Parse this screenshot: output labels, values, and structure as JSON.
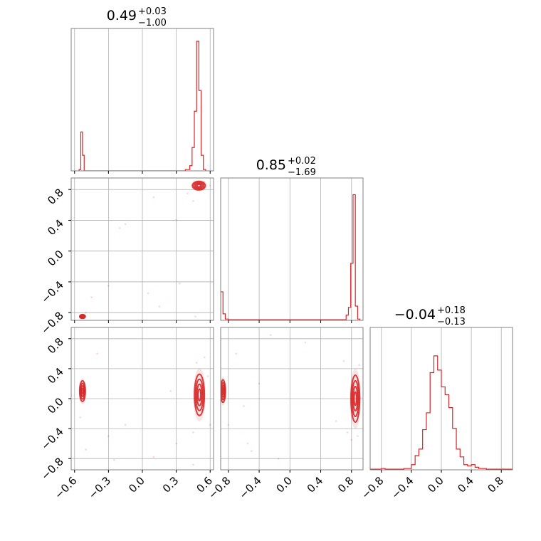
{
  "chart_data": {
    "type": "corner",
    "color": "#d62728",
    "grid": true,
    "titles": [
      {
        "value": "0.49",
        "plus": "+0.03",
        "minus": "−1.00"
      },
      {
        "value": "0.85",
        "plus": "+0.02",
        "minus": "−1.69"
      },
      {
        "value": "−0.04",
        "plus": "+0.18",
        "minus": "−0.13"
      }
    ],
    "axes": [
      {
        "range": [
          -0.63,
          0.63
        ],
        "ticks": [
          -0.6,
          -0.3,
          0.0,
          0.3,
          0.6
        ],
        "tick_labels": [
          "−0.6",
          "−0.3",
          "0.0",
          "0.3",
          "0.6"
        ]
      },
      {
        "range": [
          -0.9,
          0.95
        ],
        "ticks": [
          -0.8,
          -0.4,
          0.0,
          0.4,
          0.8
        ],
        "tick_labels": [
          "−0.8",
          "−0.4",
          "0.0",
          "0.4",
          "0.8"
        ]
      },
      {
        "range": [
          -0.95,
          0.95
        ],
        "ticks": [
          -0.8,
          -0.4,
          0.0,
          0.4,
          0.8
        ],
        "tick_labels": [
          "−0.8",
          "−0.4",
          "0.0",
          "0.4",
          "0.8"
        ]
      }
    ],
    "histograms": [
      {
        "param": 0,
        "y_max": 1.0,
        "bins": [
          [
            -0.56,
            -0.545,
            0.01
          ],
          [
            -0.545,
            -0.53,
            0.3
          ],
          [
            -0.53,
            -0.515,
            0.12
          ],
          [
            -0.515,
            0.38,
            0.0
          ],
          [
            0.38,
            0.42,
            0.01
          ],
          [
            0.42,
            0.44,
            0.04
          ],
          [
            0.44,
            0.46,
            0.18
          ],
          [
            0.46,
            0.48,
            0.46
          ],
          [
            0.48,
            0.5,
            1.0
          ],
          [
            0.5,
            0.52,
            0.62
          ],
          [
            0.52,
            0.54,
            0.12
          ],
          [
            0.54,
            0.56,
            0.01
          ]
        ]
      },
      {
        "param": 1,
        "y_max": 1.0,
        "bins": [
          [
            -0.9,
            -0.87,
            0.22
          ],
          [
            -0.87,
            -0.84,
            0.05
          ],
          [
            -0.84,
            -0.8,
            0.01
          ],
          [
            -0.8,
            0.73,
            0.005
          ],
          [
            0.73,
            0.76,
            0.04
          ],
          [
            0.76,
            0.79,
            0.1
          ],
          [
            0.79,
            0.82,
            0.44
          ],
          [
            0.82,
            0.85,
            0.97
          ],
          [
            0.85,
            0.88,
            0.11
          ],
          [
            0.88,
            0.91,
            0.01
          ]
        ]
      },
      {
        "param": 2,
        "y_max": 1.0,
        "bins": [
          [
            -0.95,
            -0.8,
            0.005
          ],
          [
            -0.8,
            -0.75,
            0.01
          ],
          [
            -0.75,
            -0.5,
            0.005
          ],
          [
            -0.5,
            -0.45,
            0.01
          ],
          [
            -0.45,
            -0.4,
            0.01
          ],
          [
            -0.4,
            -0.35,
            0.04
          ],
          [
            -0.35,
            -0.3,
            0.11
          ],
          [
            -0.3,
            -0.25,
            0.16
          ],
          [
            -0.25,
            -0.2,
            0.31
          ],
          [
            -0.2,
            -0.15,
            0.44
          ],
          [
            -0.15,
            -0.1,
            0.75
          ],
          [
            -0.1,
            -0.05,
            0.88
          ],
          [
            -0.05,
            0.0,
            0.77
          ],
          [
            0.0,
            0.05,
            0.64
          ],
          [
            0.05,
            0.1,
            0.58
          ],
          [
            0.1,
            0.15,
            0.48
          ],
          [
            0.15,
            0.2,
            0.32
          ],
          [
            0.2,
            0.25,
            0.16
          ],
          [
            0.25,
            0.3,
            0.1
          ],
          [
            0.3,
            0.35,
            0.04
          ],
          [
            0.35,
            0.4,
            0.03
          ],
          [
            0.4,
            0.45,
            0.04
          ],
          [
            0.45,
            0.5,
            0.02
          ],
          [
            0.5,
            0.6,
            0.01
          ],
          [
            0.6,
            0.95,
            0.005
          ]
        ]
      }
    ],
    "pairs": [
      {
        "x_param": 0,
        "y_param": 1,
        "blobs": [
          {
            "cx": 0.5,
            "cy": 0.85,
            "rx": 0.045,
            "ry": 0.045
          },
          {
            "cx": -0.53,
            "cy": -0.85,
            "rx": 0.02,
            "ry": 0.02
          }
        ],
        "scatter": [
          [
            0.33,
            -0.42
          ],
          [
            -0.15,
            0.35
          ],
          [
            -0.2,
            0.3
          ],
          [
            0.05,
            -0.55
          ],
          [
            0.15,
            -0.72
          ],
          [
            -0.5,
            -0.8
          ],
          [
            -0.45,
            -0.6
          ],
          [
            0.45,
            0.65
          ],
          [
            0.4,
            0.75
          ],
          [
            0.55,
            0.9
          ],
          [
            0.6,
            0.85
          ],
          [
            0.47,
            -0.85
          ],
          [
            0.1,
            0.7
          ],
          [
            -0.3,
            -0.45
          ],
          [
            0.3,
            0.4
          ]
        ]
      },
      {
        "x_param": 0,
        "y_param": 2,
        "blobs": [
          {
            "cx": 0.505,
            "cy": 0.05,
            "rx": 0.035,
            "ry": 0.22
          },
          {
            "cx": -0.53,
            "cy": 0.1,
            "rx": 0.02,
            "ry": 0.11
          }
        ],
        "scatter": [
          [
            -0.25,
            -0.82
          ],
          [
            -0.5,
            -0.68
          ],
          [
            0.45,
            -0.88
          ],
          [
            0.1,
            -0.78
          ],
          [
            -0.3,
            -0.5
          ],
          [
            0.55,
            0.55
          ],
          [
            0.48,
            0.48
          ],
          [
            0.58,
            0.3
          ],
          [
            0.6,
            -0.35
          ],
          [
            0.45,
            -0.45
          ],
          [
            -0.15,
            -0.35
          ],
          [
            0.25,
            0.1
          ],
          [
            -0.4,
            0.6
          ],
          [
            0.3,
            -0.6
          ],
          [
            -0.55,
            -0.25
          ]
        ]
      },
      {
        "x_param": 1,
        "y_param": 2,
        "blobs": [
          {
            "cx": 0.85,
            "cy": 0.0,
            "rx": 0.045,
            "ry": 0.25
          },
          {
            "cx": -0.87,
            "cy": 0.1,
            "rx": 0.025,
            "ry": 0.12
          }
        ],
        "scatter": [
          [
            -0.5,
            -0.7
          ],
          [
            -0.55,
            -0.6
          ],
          [
            -0.7,
            0.6
          ],
          [
            -0.25,
            0.85
          ],
          [
            0.7,
            0.5
          ],
          [
            0.75,
            -0.45
          ],
          [
            0.8,
            -0.55
          ],
          [
            -0.6,
            -0.1
          ],
          [
            -0.15,
            -0.8
          ],
          [
            0.9,
            0.45
          ],
          [
            0.6,
            -0.3
          ],
          [
            -0.8,
            -0.35
          ],
          [
            0.2,
            0.75
          ],
          [
            -0.4,
            0.2
          ],
          [
            0.88,
            -0.5
          ]
        ]
      }
    ]
  }
}
